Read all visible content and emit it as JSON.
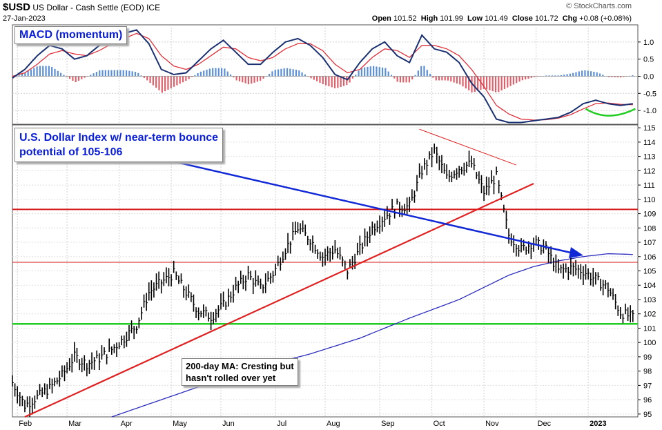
{
  "header": {
    "symbol": "$USD",
    "name": "US Dollar - Cash Settle (EOD)",
    "exchange": "ICE",
    "date": "27-Jan-2023",
    "brand": "© StockCharts.com",
    "open_label": "Open",
    "open": "101.52",
    "high_label": "High",
    "high": "101.99",
    "low_label": "Low",
    "low": "101.49",
    "close_label": "Close",
    "close": "101.72",
    "chg_label": "Chg",
    "chg": "+0.08 (+0.08%)"
  },
  "annotations": {
    "macd_title": "MACD (momentum)",
    "price_title_line1": "U.S. Dollar Index w/ near-term bounce",
    "price_title_line2": "potential of 105-106",
    "ma_note_line1": "200-day MA: Cresting but",
    "ma_note_line2": "hasn't rolled over yet"
  },
  "colors": {
    "price": "#000000",
    "ma200": "#2b2bbf",
    "macd_line": "#1a3070",
    "signal_line": "#e0303a",
    "hist_pos": "#5b8fd6",
    "hist_neg": "#e0606a",
    "resistance": "#d61a1a",
    "support": "#22cc22",
    "downtrend_arrow": "#1028d6",
    "uptrend": "#e02020"
  },
  "chart_data": [
    {
      "type": "line",
      "panel": "MACD",
      "yticks": [
        1.0,
        0.5,
        0.0,
        -0.5,
        -1.0
      ],
      "ylim": [
        -1.4,
        1.5
      ],
      "x": [
        0,
        5,
        10,
        15,
        20,
        25,
        30,
        35,
        40,
        45,
        50,
        55,
        60,
        65,
        70,
        75,
        80,
        85,
        90,
        95,
        100,
        105,
        110,
        115,
        120,
        125,
        130,
        135,
        140,
        145,
        150,
        155,
        160,
        165,
        170,
        175,
        180,
        185,
        190,
        195,
        200,
        205,
        210,
        215,
        220,
        225,
        230,
        235,
        240,
        245,
        250
      ],
      "series": [
        {
          "name": "MACD",
          "values": [
            -0.05,
            0.2,
            0.6,
            0.9,
            0.8,
            0.5,
            0.6,
            0.9,
            1.1,
            1.25,
            1.35,
            0.95,
            0.2,
            0.05,
            0.1,
            0.45,
            0.8,
            1.05,
            0.7,
            0.35,
            0.35,
            0.7,
            1.0,
            1.1,
            0.9,
            0.55,
            0.05,
            -0.1,
            0.4,
            0.8,
            1.0,
            0.6,
            0.4,
            1.2,
            0.8,
            0.7,
            0.4,
            -0.2,
            -0.6,
            -1.25,
            -1.35,
            -1.35,
            -1.3,
            -1.25,
            -1.2,
            -1.05,
            -0.8,
            -0.7,
            -0.8,
            -0.85,
            -0.8
          ]
        },
        {
          "name": "Signal",
          "values": [
            0.0,
            0.1,
            0.35,
            0.65,
            0.75,
            0.65,
            0.6,
            0.75,
            0.95,
            1.1,
            1.25,
            1.1,
            0.6,
            0.3,
            0.2,
            0.35,
            0.6,
            0.85,
            0.8,
            0.55,
            0.45,
            0.55,
            0.8,
            0.95,
            0.95,
            0.75,
            0.35,
            0.1,
            0.2,
            0.55,
            0.8,
            0.75,
            0.55,
            0.9,
            0.9,
            0.8,
            0.6,
            0.2,
            -0.3,
            -0.85,
            -1.1,
            -1.25,
            -1.28,
            -1.27,
            -1.22,
            -1.12,
            -0.95,
            -0.8,
            -0.78,
            -0.82,
            -0.83
          ]
        }
      ]
    },
    {
      "type": "bar",
      "panel": "Price",
      "xlabels": [
        "Feb",
        "Mar",
        "Apr",
        "May",
        "Jun",
        "Jul",
        "Aug",
        "Sep",
        "Oct",
        "Nov",
        "Dec",
        "2023"
      ],
      "yticks": [
        95,
        96,
        97,
        98,
        99,
        100,
        101,
        102,
        103,
        104,
        105,
        106,
        107,
        108,
        109,
        110,
        111,
        112,
        113,
        114,
        115
      ],
      "ylim": [
        94.8,
        115.2
      ],
      "x": [
        0,
        5,
        10,
        15,
        20,
        25,
        30,
        35,
        40,
        45,
        50,
        55,
        60,
        65,
        70,
        75,
        80,
        85,
        90,
        95,
        100,
        105,
        110,
        115,
        120,
        125,
        130,
        135,
        140,
        145,
        150,
        155,
        160,
        165,
        170,
        175,
        180,
        185,
        190,
        195,
        200,
        205,
        210,
        215,
        220,
        225,
        230,
        235,
        240,
        245,
        250
      ],
      "close": [
        97.2,
        95.6,
        96.2,
        96.8,
        97.7,
        99,
        98.5,
        98.9,
        99.5,
        100.3,
        101.2,
        103.5,
        104.2,
        104.8,
        103.5,
        102.2,
        101.8,
        102.6,
        103.8,
        104.7,
        103.8,
        104.8,
        106.5,
        108,
        107.2,
        106,
        106.5,
        105,
        106.5,
        108,
        108.8,
        109.5,
        109.5,
        112,
        113.4,
        111.5,
        112.2,
        112.5,
        110.5,
        111.6,
        107.5,
        106.5,
        107,
        106.5,
        105,
        105.2,
        105,
        104.4,
        103.8,
        102.1,
        101.72
      ],
      "ma200_x": [
        40,
        60,
        80,
        100,
        120,
        140,
        160,
        180,
        200,
        210,
        220,
        230,
        240,
        250
      ],
      "ma200": [
        94.8,
        96,
        97.2,
        98.3,
        99.2,
        100.3,
        101.7,
        103,
        104.7,
        105.3,
        105.7,
        106,
        106.2,
        106.15
      ],
      "lines": {
        "resistance_upper": 109.3,
        "resistance_lower": 105.6,
        "support": 101.3
      }
    }
  ]
}
